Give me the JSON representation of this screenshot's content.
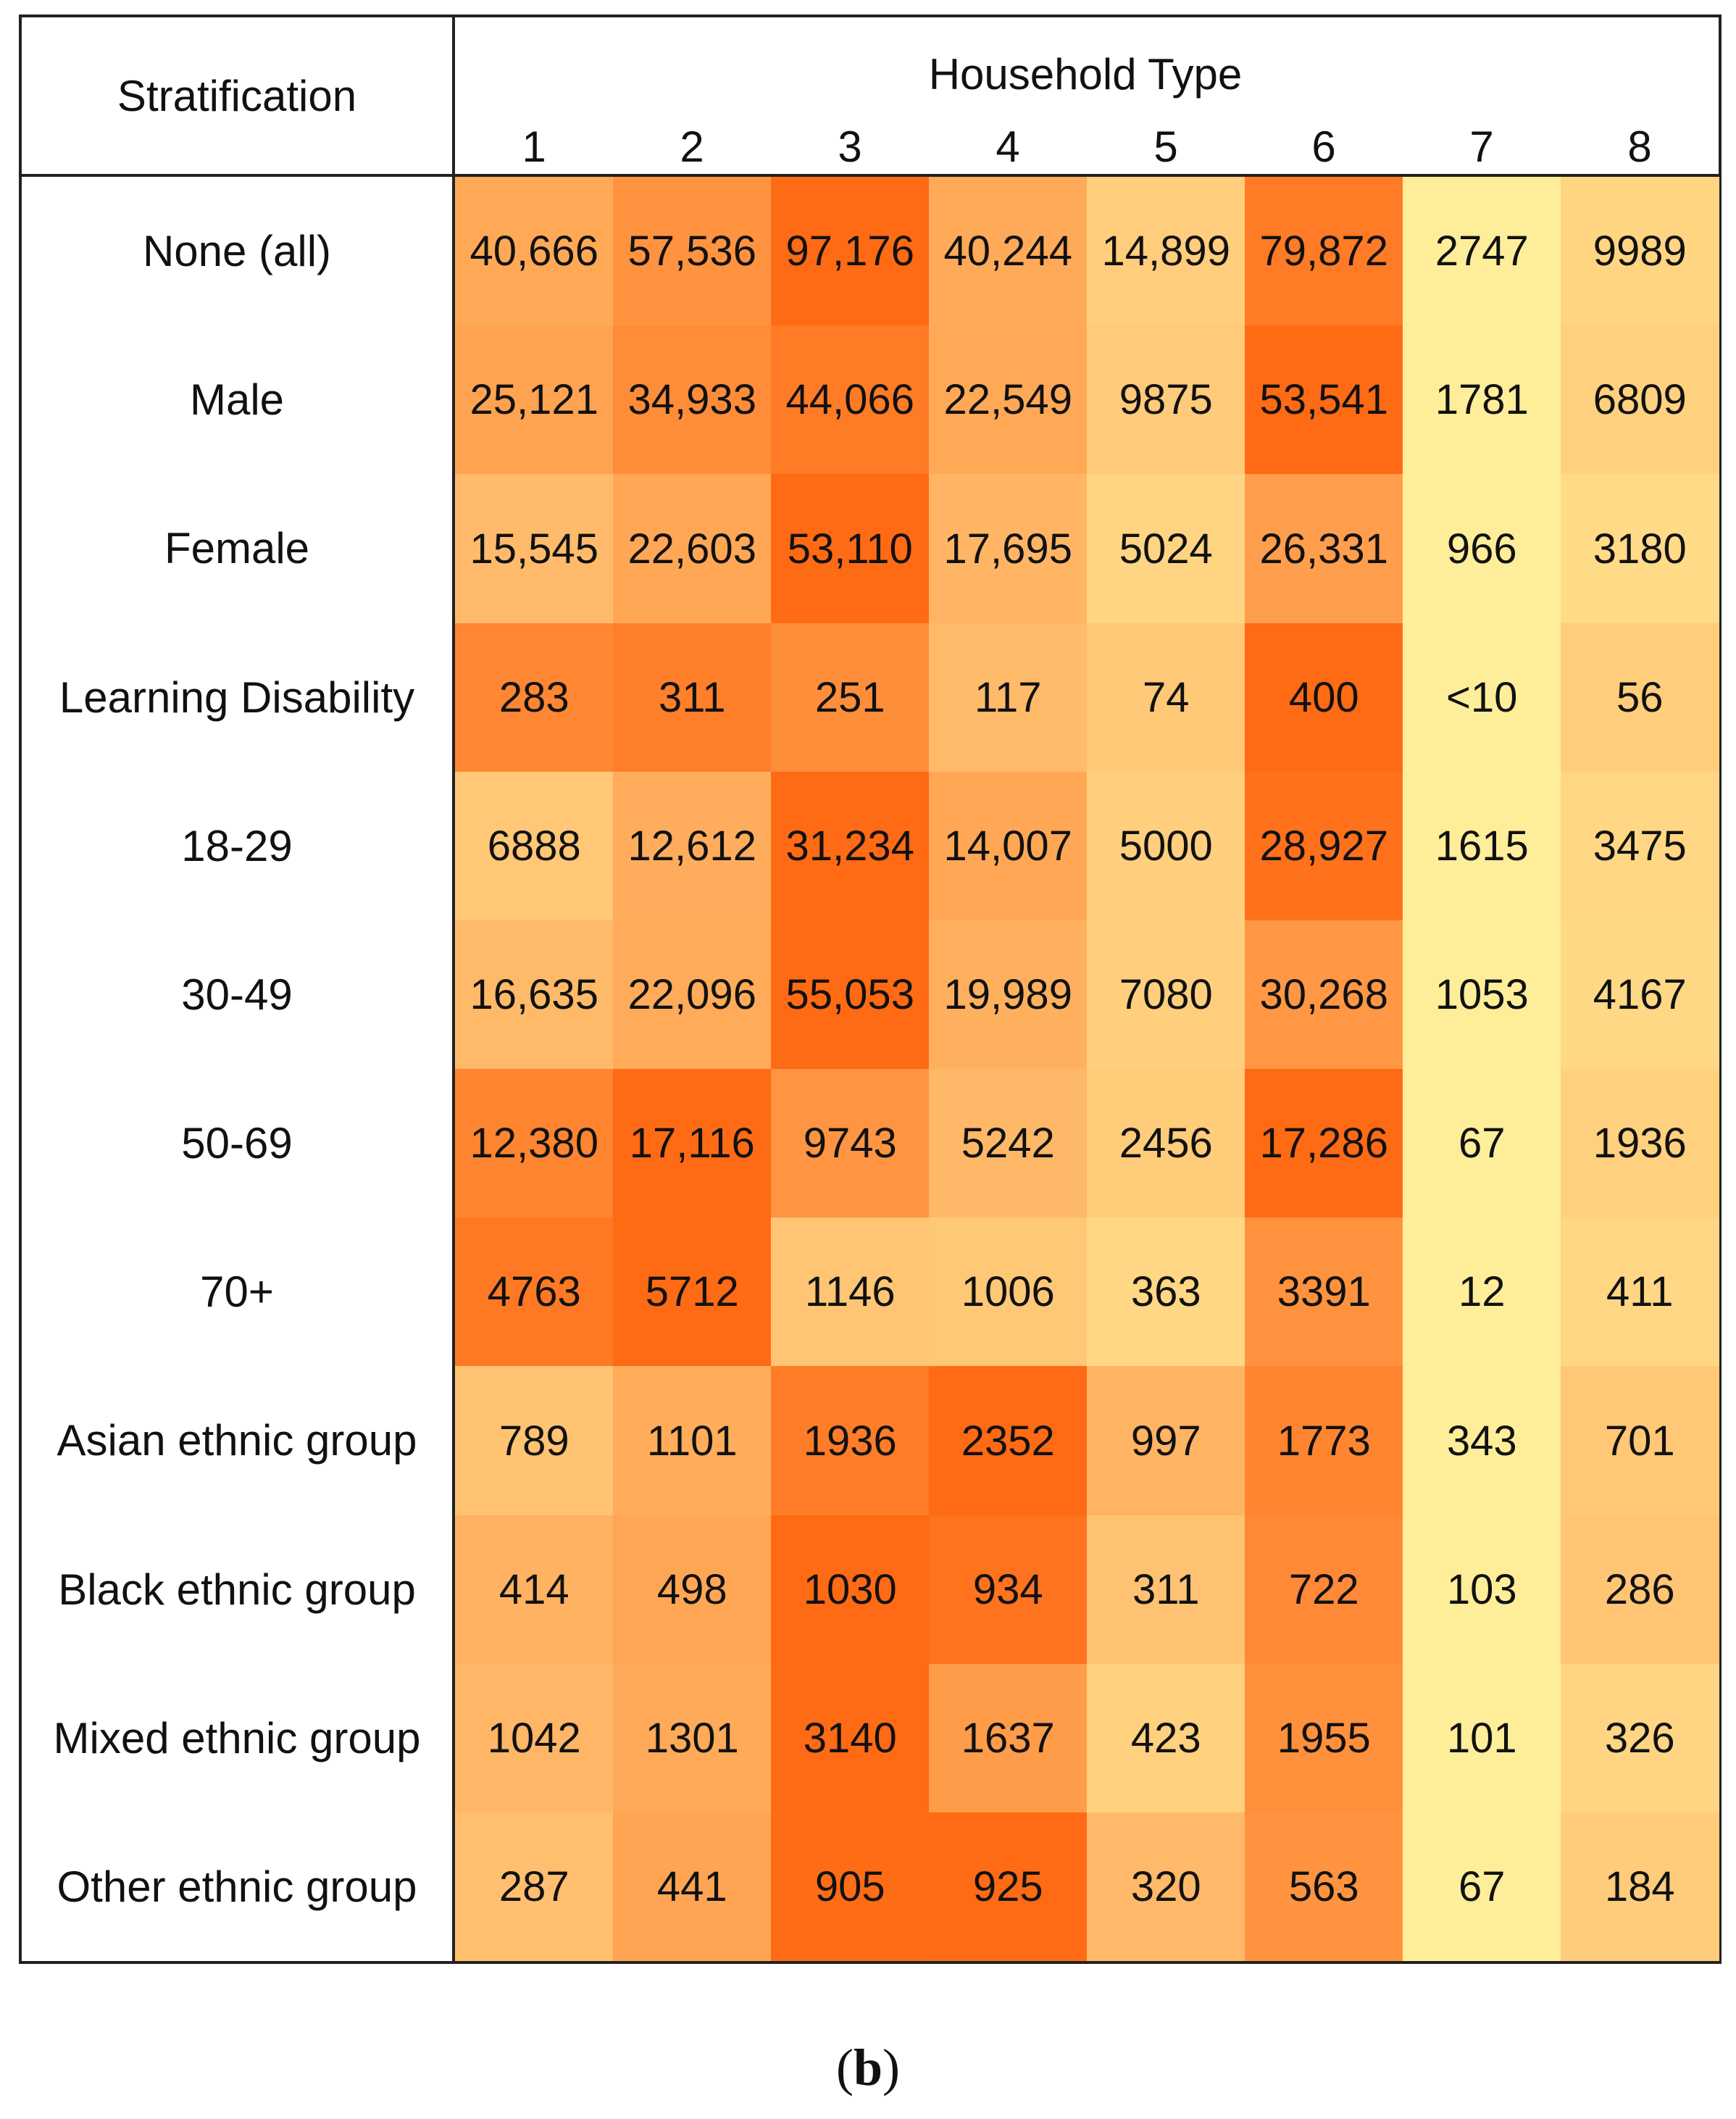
{
  "chart_data": {
    "type": "heatmap",
    "row_header": "Stratification",
    "column_group_title": "Household Type",
    "columns": [
      "1",
      "2",
      "3",
      "4",
      "5",
      "6",
      "7",
      "8"
    ],
    "rows": [
      {
        "label": "None (all)",
        "values": [
          "40,666",
          "57,536",
          "97,176",
          "40,244",
          "14,899",
          "79,872",
          "2747",
          "9989"
        ]
      },
      {
        "label": "Male",
        "values": [
          "25,121",
          "34,933",
          "44,066",
          "22,549",
          "9875",
          "53,541",
          "1781",
          "6809"
        ]
      },
      {
        "label": "Female",
        "values": [
          "15,545",
          "22,603",
          "53,110",
          "17,695",
          "5024",
          "26,331",
          "966",
          "3180"
        ]
      },
      {
        "label": "Learning Disability",
        "values": [
          "283",
          "311",
          "251",
          "117",
          "74",
          "400",
          "<10",
          "56"
        ]
      },
      {
        "label": "18-29",
        "values": [
          "6888",
          "12,612",
          "31,234",
          "14,007",
          "5000",
          "28,927",
          "1615",
          "3475"
        ]
      },
      {
        "label": "30-49",
        "values": [
          "16,635",
          "22,096",
          "55,053",
          "19,989",
          "7080",
          "30,268",
          "1053",
          "4167"
        ]
      },
      {
        "label": "50-69",
        "values": [
          "12,380",
          "17,116",
          "9743",
          "5242",
          "2456",
          "17,286",
          "67",
          "1936"
        ]
      },
      {
        "label": "70+",
        "values": [
          "4763",
          "5712",
          "1146",
          "1006",
          "363",
          "3391",
          "12",
          "411"
        ]
      },
      {
        "label": "Asian ethnic group",
        "values": [
          "789",
          "1101",
          "1936",
          "2352",
          "997",
          "1773",
          "343",
          "701"
        ]
      },
      {
        "label": "Black ethnic group",
        "values": [
          "414",
          "498",
          "1030",
          "934",
          "311",
          "722",
          "103",
          "286"
        ]
      },
      {
        "label": "Mixed ethnic group",
        "values": [
          "1042",
          "1301",
          "3140",
          "1637",
          "423",
          "1955",
          "101",
          "326"
        ]
      },
      {
        "label": "Other ethnic group",
        "values": [
          "287",
          "441",
          "905",
          "925",
          "320",
          "563",
          "67",
          "184"
        ]
      }
    ],
    "color_scale": {
      "low": "#FFEE99",
      "mid": "#FFC070",
      "high": "#FF6A14"
    }
  },
  "caption": {
    "open": "(",
    "letter": "b",
    "close": ")"
  }
}
